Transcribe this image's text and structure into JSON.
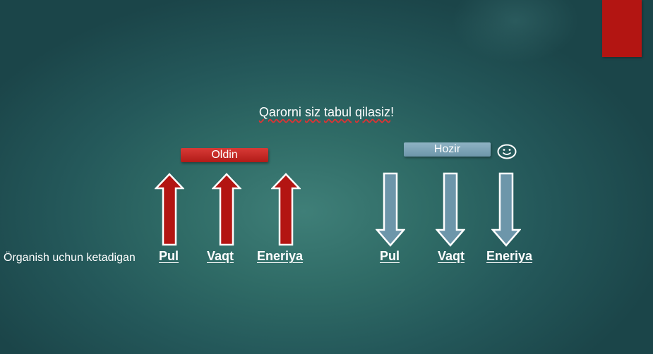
{
  "slide": {
    "title_parts": [
      "Qarorni",
      " ",
      "siz",
      " ",
      "tabul",
      " ",
      "qilasiz",
      "!"
    ],
    "before_label": "Oldin",
    "after_label": "Hozir",
    "lead_text": "Örganish uchun ketadigan",
    "before_words": [
      "Pul",
      "Vaqt",
      "Eneriya"
    ],
    "after_words": [
      "Pul",
      "Vaqt",
      "Eneriya"
    ]
  },
  "colors": {
    "accent_red": "#b31512",
    "arrow_red": "#b31512",
    "arrow_blue": "#6d96aa",
    "label_red": "#c82a27",
    "label_blue": "#7ea5b8"
  },
  "icons": {
    "up_arrow": "up-arrow-icon",
    "down_arrow": "down-arrow-icon",
    "smiley": "smiley-icon"
  }
}
